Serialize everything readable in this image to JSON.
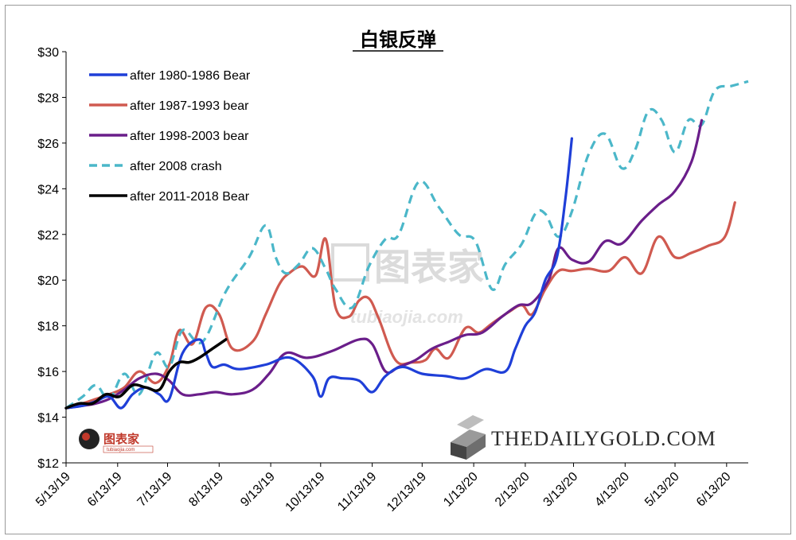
{
  "chart_data": {
    "type": "line",
    "title": "白银反弹",
    "ylim": [
      12,
      30
    ],
    "y_ticks": [
      "$12",
      "$14",
      "$16",
      "$18",
      "$20",
      "$22",
      "$24",
      "$26",
      "$28",
      "$30"
    ],
    "y_tick_values": [
      12,
      14,
      16,
      18,
      20,
      22,
      24,
      26,
      28,
      30
    ],
    "x_ticks": [
      "5/13/19",
      "6/13/19",
      "7/13/19",
      "8/13/19",
      "9/13/19",
      "10/13/19",
      "11/13/19",
      "12/13/19",
      "1/13/20",
      "2/13/20",
      "3/13/20",
      "4/13/20",
      "5/13/20",
      "6/13/20"
    ],
    "x_tick_days": [
      0,
      31,
      61,
      92,
      123,
      153,
      184,
      214,
      245,
      276,
      305,
      336,
      366,
      397
    ],
    "xlim_days": [
      0,
      410
    ],
    "legend_position": "top-left",
    "series": [
      {
        "name": "after 1980-1986 Bear",
        "color": "#1f3fd8",
        "dash": false,
        "x": [
          0,
          10,
          18,
          26,
          33,
          40,
          48,
          56,
          62,
          70,
          80,
          84,
          88,
          95,
          104,
          120,
          135,
          148,
          153,
          158,
          166,
          176,
          184,
          192,
          202,
          214,
          228,
          240,
          252,
          264,
          270,
          276,
          282,
          288,
          295,
          300,
          304
        ],
        "y": [
          14.4,
          14.5,
          14.7,
          14.9,
          14.4,
          15.0,
          15.3,
          15.0,
          14.8,
          16.8,
          17.4,
          16.8,
          16.2,
          16.3,
          16.1,
          16.3,
          16.6,
          15.8,
          14.9,
          15.7,
          15.7,
          15.6,
          15.1,
          15.8,
          16.2,
          15.9,
          15.8,
          15.7,
          16.1,
          16.0,
          17.0,
          18.0,
          18.6,
          20.0,
          21.0,
          23.5,
          26.2
        ]
      },
      {
        "name": "after 1987-1993 bear",
        "color": "#d05a50",
        "dash": false,
        "x": [
          0,
          10,
          18,
          26,
          35,
          44,
          54,
          62,
          68,
          76,
          84,
          92,
          100,
          112,
          120,
          128,
          134,
          142,
          150,
          156,
          162,
          170,
          176,
          182,
          188,
          198,
          208,
          216,
          222,
          230,
          240,
          248,
          256,
          266,
          274,
          280,
          288,
          296,
          304,
          314,
          326,
          336,
          346,
          356,
          366,
          376,
          386,
          396,
          402
        ],
        "y": [
          14.4,
          14.6,
          14.8,
          15.0,
          15.3,
          16.0,
          15.5,
          16.3,
          17.8,
          17.2,
          18.8,
          18.5,
          17.0,
          17.3,
          18.5,
          19.8,
          20.3,
          20.6,
          20.2,
          21.8,
          18.8,
          18.4,
          19.1,
          19.2,
          18.3,
          16.5,
          16.4,
          16.5,
          17.0,
          16.6,
          17.9,
          17.7,
          18.1,
          18.6,
          18.9,
          18.5,
          19.6,
          20.4,
          20.4,
          20.5,
          20.4,
          21.0,
          20.3,
          21.9,
          21.0,
          21.2,
          21.5,
          21.9,
          23.4
        ]
      },
      {
        "name": "after 1998-2003 bear",
        "color": "#6a1e8a",
        "dash": false,
        "x": [
          0,
          10,
          18,
          26,
          35,
          44,
          54,
          62,
          70,
          80,
          90,
          100,
          112,
          122,
          132,
          145,
          160,
          176,
          184,
          192,
          200,
          210,
          220,
          230,
          240,
          250,
          262,
          272,
          280,
          290,
          296,
          304,
          314,
          324,
          334,
          346,
          356,
          366,
          376,
          382
        ],
        "y": [
          14.4,
          14.5,
          14.6,
          14.8,
          15.2,
          15.7,
          15.9,
          15.6,
          15.0,
          15.0,
          15.1,
          15.0,
          15.2,
          15.9,
          16.8,
          16.6,
          16.9,
          17.4,
          17.2,
          16.0,
          16.2,
          16.5,
          17.0,
          17.3,
          17.6,
          17.7,
          18.4,
          18.9,
          19.0,
          20.0,
          21.4,
          20.9,
          20.8,
          21.7,
          21.6,
          22.6,
          23.3,
          23.9,
          25.2,
          27.0
        ]
      },
      {
        "name": "after 2008 crash",
        "color": "#4bb7c9",
        "dash": true,
        "x": [
          0,
          10,
          18,
          26,
          35,
          44,
          54,
          62,
          70,
          82,
          96,
          110,
          120,
          126,
          132,
          140,
          148,
          156,
          162,
          172,
          182,
          192,
          200,
          212,
          224,
          236,
          246,
          256,
          264,
          274,
          282,
          288,
          296,
          304,
          314,
          324,
          334,
          342,
          350,
          358,
          366,
          374,
          382,
          390,
          400,
          410
        ],
        "y": [
          14.4,
          14.9,
          15.4,
          14.8,
          15.9,
          15.0,
          16.8,
          16.2,
          17.8,
          17.3,
          19.5,
          21.0,
          22.4,
          21.0,
          20.3,
          20.7,
          21.4,
          20.5,
          19.6,
          18.8,
          20.6,
          21.8,
          22.0,
          24.3,
          23.2,
          22.0,
          21.7,
          19.6,
          20.7,
          21.6,
          22.9,
          22.9,
          21.9,
          23.0,
          25.5,
          26.4,
          24.9,
          25.7,
          27.4,
          27.0,
          25.6,
          27.0,
          26.8,
          28.3,
          28.5,
          28.7
        ]
      },
      {
        "name": "after 2011-2018 Bear",
        "color": "#000000",
        "dash": false,
        "x": [
          0,
          8,
          16,
          24,
          32,
          40,
          48,
          56,
          62,
          68,
          74,
          80,
          88,
          96
        ],
        "y": [
          14.4,
          14.6,
          14.6,
          15.0,
          14.9,
          15.4,
          15.3,
          15.2,
          16.0,
          16.4,
          16.4,
          16.6,
          17.0,
          17.4
        ]
      }
    ]
  },
  "brand": {
    "name": "THEDAILYGOLD.COM"
  },
  "watermark": {
    "cn": "图表家",
    "url": "tubiaojia.com"
  },
  "logo": {
    "cn": "图表家",
    "url": "tubiaojia.com"
  }
}
